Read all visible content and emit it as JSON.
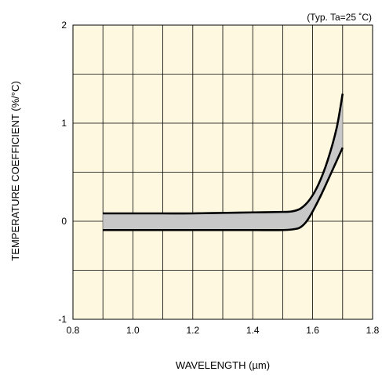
{
  "chart_data": {
    "type": "area",
    "title": "",
    "note": "(Typ. Ta=25 ˚C)",
    "xlabel": "WAVELENGTH (µm)",
    "ylabel": "TEMPERATURE COEFFICIENT (%/°C)",
    "xlim": [
      0.8,
      1.8
    ],
    "ylim": [
      -1,
      2
    ],
    "x_ticks": [
      "0.8",
      "1.0",
      "1.2",
      "1.4",
      "1.6",
      "1.8"
    ],
    "y_ticks": [
      "-1",
      "0",
      "1",
      "2"
    ],
    "grid": true,
    "colors": {
      "plot_bg": "#fdf8df",
      "band_fill": "#c8c8c8",
      "line": "#000000",
      "grid": "#000000"
    },
    "series": [
      {
        "x": [
          0.9,
          1.0,
          1.1,
          1.2,
          1.3,
          1.4,
          1.5,
          1.53,
          1.56,
          1.59,
          1.62,
          1.65,
          1.68,
          1.7
        ],
        "values": [
          0.08,
          0.08,
          0.08,
          0.08,
          0.085,
          0.09,
          0.095,
          0.1,
          0.13,
          0.22,
          0.38,
          0.62,
          0.95,
          1.3
        ]
      },
      {
        "x": [
          0.9,
          1.0,
          1.1,
          1.2,
          1.3,
          1.4,
          1.5,
          1.54,
          1.56,
          1.58,
          1.6,
          1.63,
          1.66,
          1.7
        ],
        "values": [
          -0.09,
          -0.09,
          -0.09,
          -0.09,
          -0.09,
          -0.09,
          -0.09,
          -0.08,
          -0.06,
          0.0,
          0.1,
          0.28,
          0.48,
          0.75
        ]
      }
    ]
  }
}
